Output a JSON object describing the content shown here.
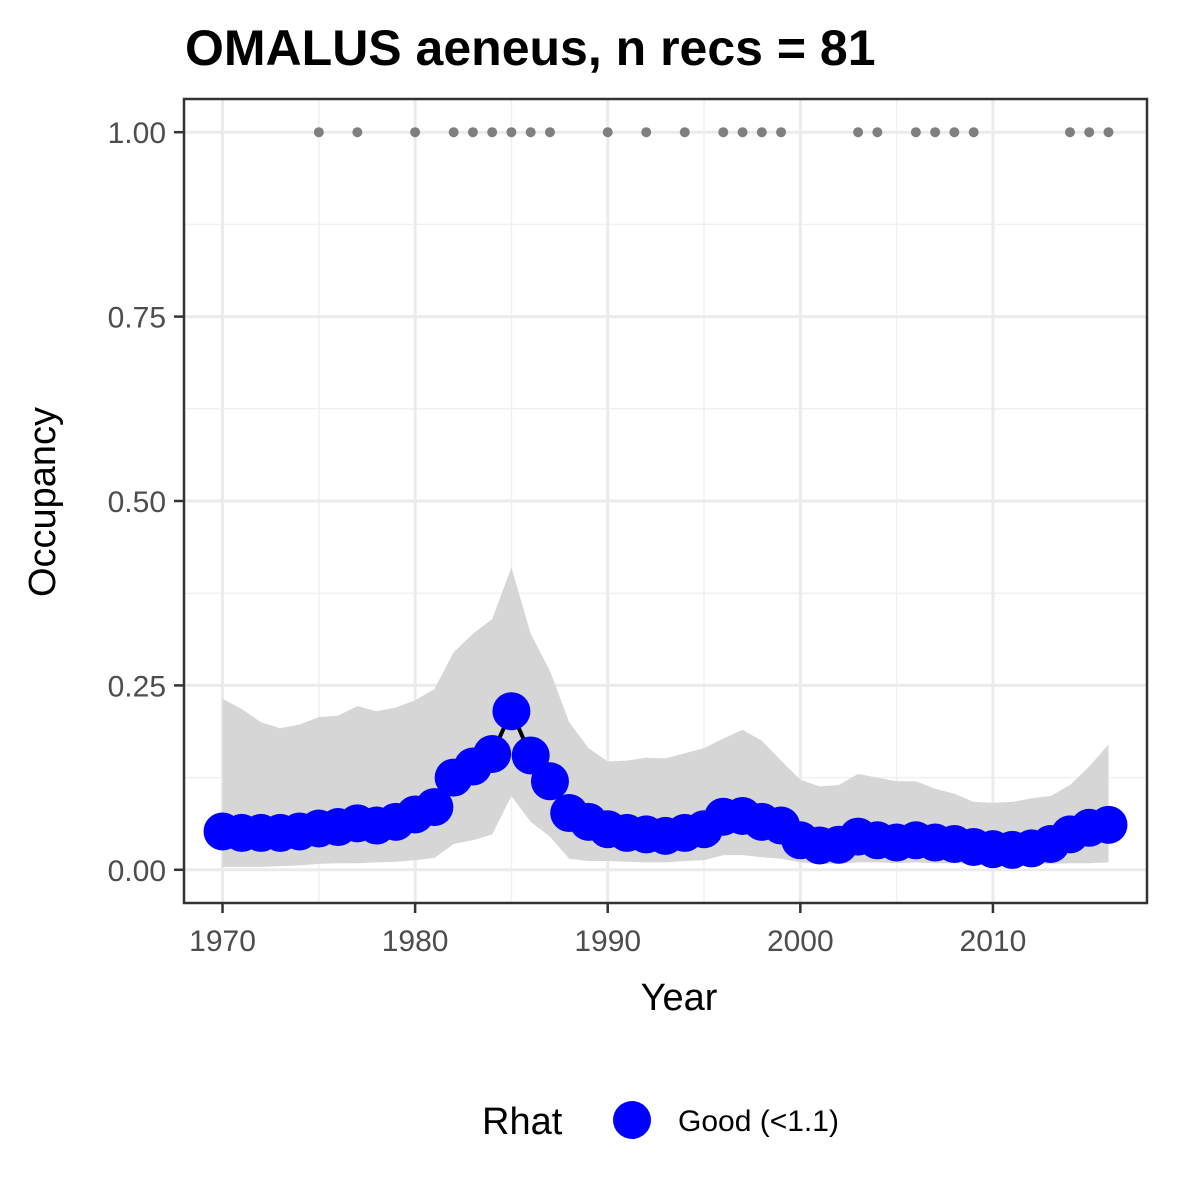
{
  "chart_data": {
    "type": "line",
    "title": "OMALUS aeneus, n recs = 81",
    "xlabel": "Year",
    "ylabel": "Occupancy",
    "xlim": [
      1968,
      2018
    ],
    "ylim": [
      -0.045,
      1.045
    ],
    "x_ticks": [
      1970,
      1980,
      1990,
      2000,
      2010
    ],
    "x_tick_labels": [
      "1970",
      "1980",
      "1990",
      "2000",
      "2010"
    ],
    "y_ticks": [
      0,
      0.25,
      0.5,
      0.75,
      1
    ],
    "y_tick_labels": [
      "0.00",
      "0.25",
      "0.50",
      "0.75",
      "1.00"
    ],
    "grid": true,
    "legend_position": "bottom",
    "legend_title": "Rhat",
    "series": [
      {
        "name": "Good (<1.1)",
        "color": "#0000ff",
        "x": [
          1970,
          1971,
          1972,
          1973,
          1974,
          1975,
          1976,
          1977,
          1978,
          1979,
          1980,
          1981,
          1982,
          1983,
          1984,
          1985,
          1986,
          1987,
          1988,
          1989,
          1990,
          1991,
          1992,
          1993,
          1994,
          1995,
          1996,
          1997,
          1998,
          1999,
          2000,
          2001,
          2002,
          2003,
          2004,
          2005,
          2006,
          2007,
          2008,
          2009,
          2010,
          2011,
          2012,
          2013,
          2014,
          2015,
          2016
        ],
        "y": [
          0.052,
          0.05,
          0.05,
          0.05,
          0.052,
          0.056,
          0.058,
          0.063,
          0.06,
          0.065,
          0.075,
          0.085,
          0.125,
          0.14,
          0.157,
          0.215,
          0.155,
          0.12,
          0.077,
          0.065,
          0.055,
          0.05,
          0.048,
          0.046,
          0.05,
          0.055,
          0.072,
          0.073,
          0.065,
          0.06,
          0.04,
          0.033,
          0.034,
          0.045,
          0.04,
          0.037,
          0.04,
          0.037,
          0.035,
          0.031,
          0.028,
          0.027,
          0.029,
          0.035,
          0.048,
          0.057,
          0.061
        ]
      }
    ],
    "ribbon": {
      "color": "#d6d6d6",
      "lower": [
        0.004,
        0.004,
        0.004,
        0.005,
        0.006,
        0.008,
        0.009,
        0.009,
        0.01,
        0.011,
        0.013,
        0.016,
        0.035,
        0.04,
        0.048,
        0.1,
        0.065,
        0.045,
        0.015,
        0.012,
        0.012,
        0.011,
        0.01,
        0.01,
        0.012,
        0.013,
        0.02,
        0.02,
        0.017,
        0.015,
        0.01,
        0.008,
        0.008,
        0.01,
        0.01,
        0.009,
        0.01,
        0.009,
        0.009,
        0.008,
        0.007,
        0.007,
        0.008,
        0.008,
        0.009,
        0.009,
        0.01
      ],
      "upper": [
        0.232,
        0.218,
        0.2,
        0.192,
        0.197,
        0.207,
        0.209,
        0.222,
        0.215,
        0.22,
        0.23,
        0.245,
        0.295,
        0.32,
        0.34,
        0.41,
        0.32,
        0.27,
        0.2,
        0.165,
        0.147,
        0.148,
        0.152,
        0.151,
        0.158,
        0.165,
        0.178,
        0.19,
        0.175,
        0.148,
        0.122,
        0.113,
        0.115,
        0.13,
        0.125,
        0.12,
        0.12,
        0.11,
        0.103,
        0.092,
        0.091,
        0.092,
        0.097,
        0.1,
        0.115,
        0.14,
        0.17
      ]
    },
    "records": {
      "color": "#7f7f7f",
      "y": 1.0,
      "x": [
        1975,
        1977,
        1980,
        1982,
        1983,
        1984,
        1985,
        1986,
        1987,
        1990,
        1992,
        1994,
        1996,
        1997,
        1998,
        1999,
        2003,
        2004,
        2006,
        2007,
        2008,
        2009,
        2014,
        2015,
        2016
      ]
    }
  }
}
